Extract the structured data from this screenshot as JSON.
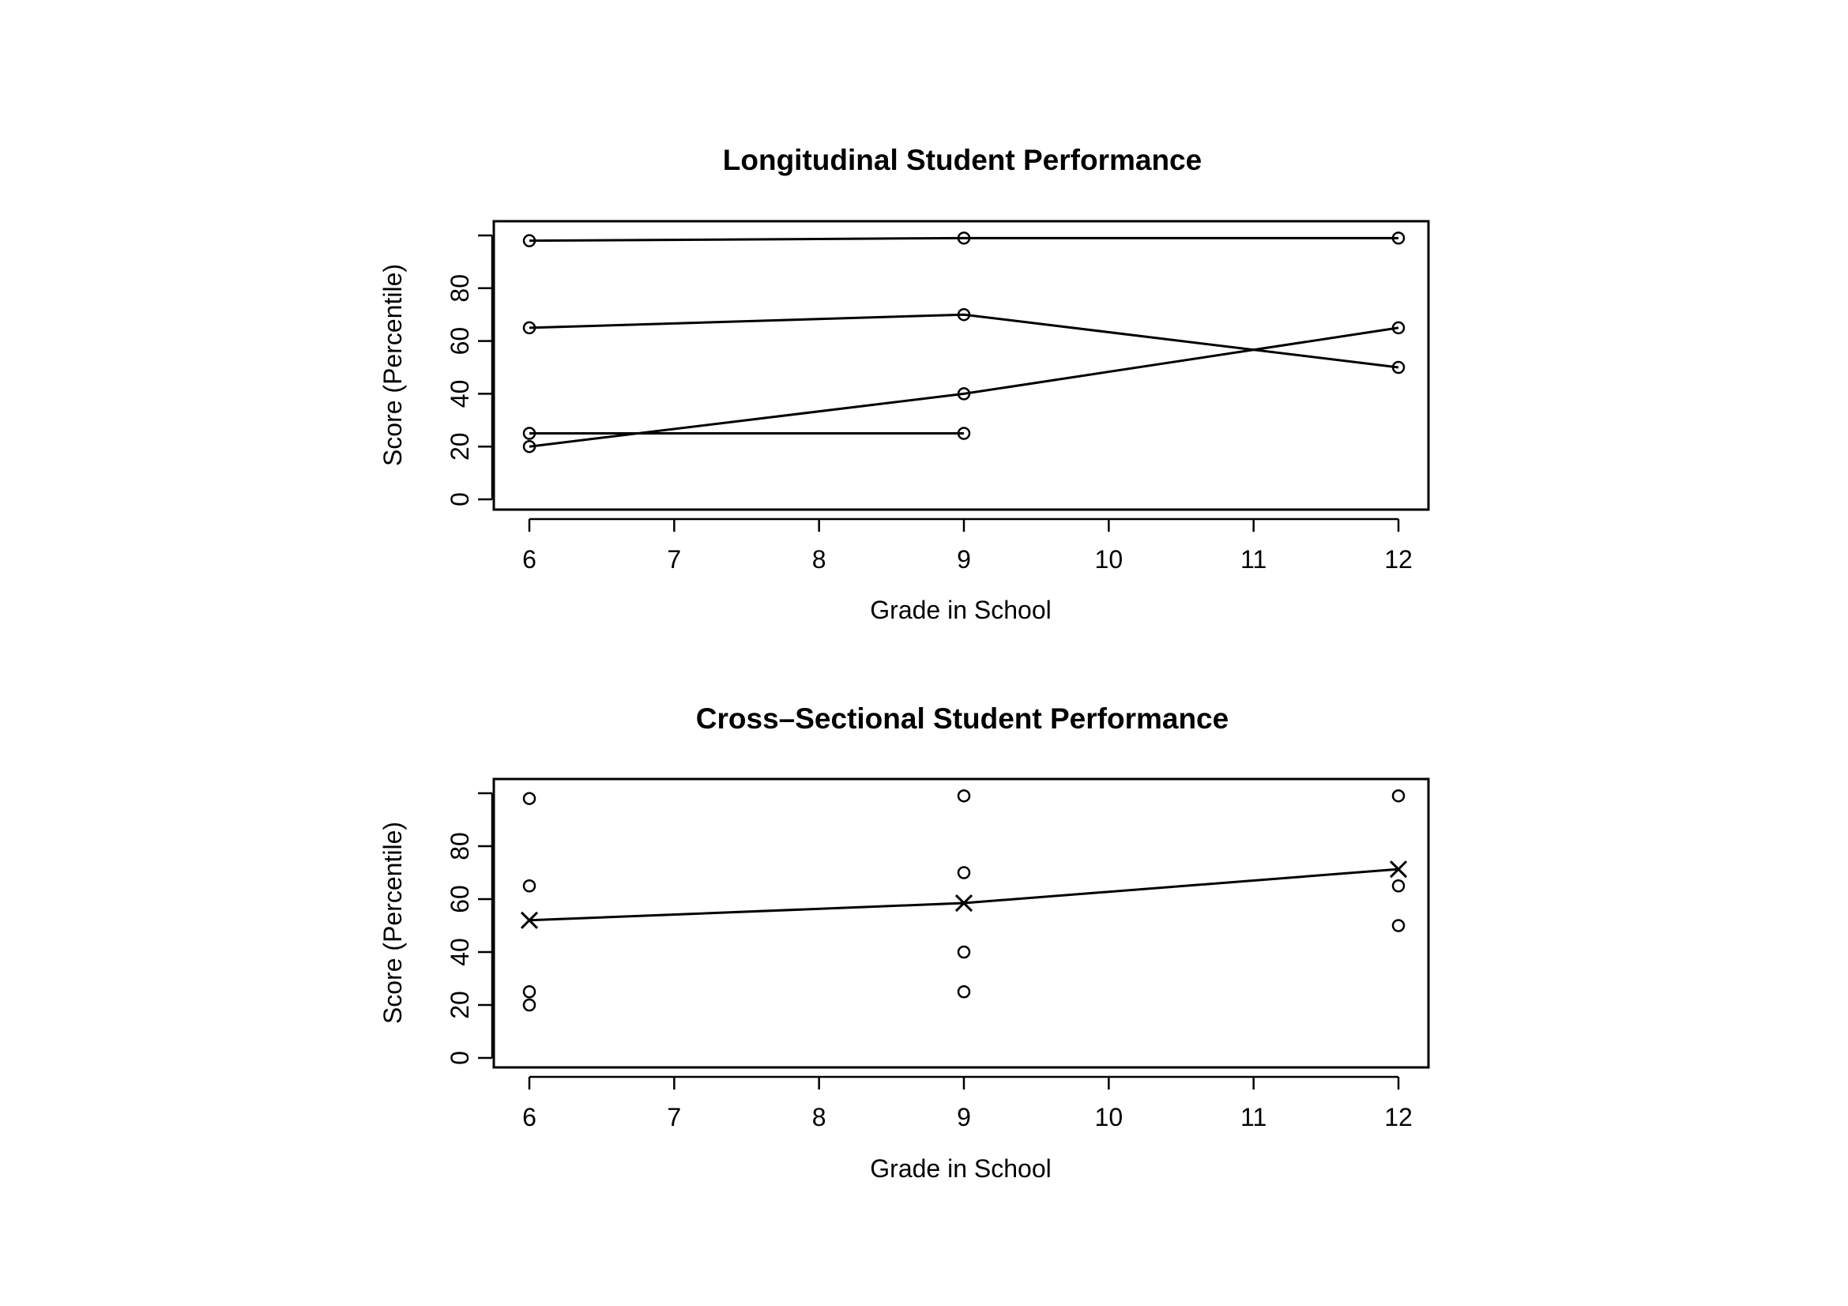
{
  "chart_data": [
    {
      "type": "line",
      "title": "Longitudinal Student Performance",
      "xlabel": "Grade in School",
      "ylabel": "Score (Percentile)",
      "xlim": [
        6,
        12
      ],
      "ylim": [
        0,
        100
      ],
      "x_ticks": [
        "6",
        "7",
        "8",
        "9",
        "10",
        "11",
        "12"
      ],
      "y_ticks": [
        "0",
        "20",
        "40",
        "60",
        "80"
      ],
      "series": [
        {
          "points": [
            [
              6,
              98
            ],
            [
              9,
              99
            ],
            [
              12,
              99
            ]
          ]
        },
        {
          "points": [
            [
              6,
              65
            ],
            [
              9,
              70
            ],
            [
              12,
              50
            ]
          ]
        },
        {
          "points": [
            [
              6,
              20
            ],
            [
              9,
              40
            ],
            [
              12,
              65
            ]
          ]
        },
        {
          "points": [
            [
              6,
              25
            ],
            [
              9,
              25
            ]
          ]
        }
      ]
    },
    {
      "type": "scatter",
      "title": "Cross–Sectional Student Performance",
      "xlabel": "Grade in School",
      "ylabel": "Score (Percentile)",
      "xlim": [
        6,
        12
      ],
      "ylim": [
        0,
        100
      ],
      "x_ticks": [
        "6",
        "7",
        "8",
        "9",
        "10",
        "11",
        "12"
      ],
      "y_ticks": [
        "0",
        "20",
        "40",
        "60",
        "80"
      ],
      "points": [
        [
          6,
          98
        ],
        [
          6,
          65
        ],
        [
          6,
          25
        ],
        [
          6,
          20
        ],
        [
          9,
          99
        ],
        [
          9,
          70
        ],
        [
          9,
          40
        ],
        [
          9,
          25
        ],
        [
          12,
          99
        ],
        [
          12,
          65
        ],
        [
          12,
          50
        ]
      ],
      "mean_line": [
        [
          6,
          52
        ],
        [
          9,
          58.5
        ],
        [
          12,
          71.3
        ]
      ]
    }
  ]
}
